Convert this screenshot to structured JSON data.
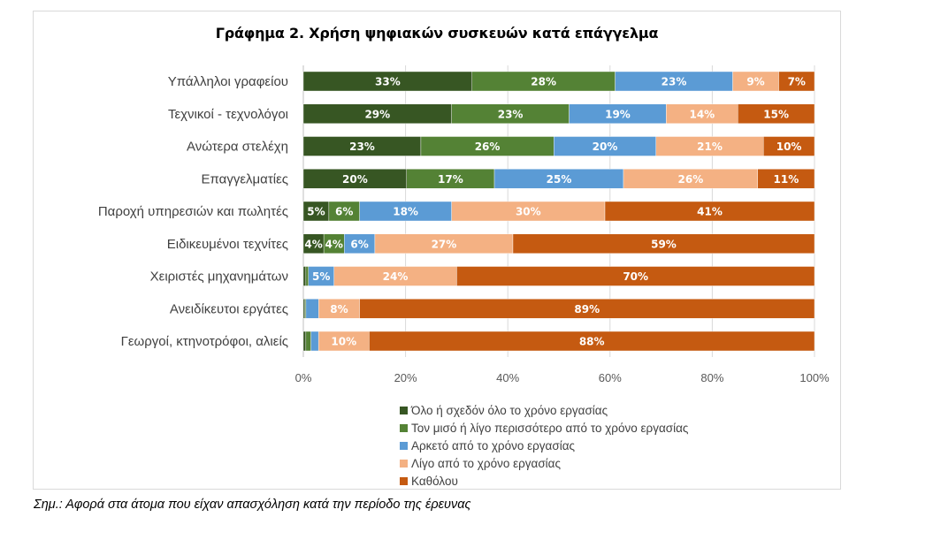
{
  "chart_data": {
    "type": "bar",
    "orientation": "horizontal",
    "stacked": "percent",
    "title": "Γράφημα 2. Χρήση ψηφιακών συσκευών κατά επάγγελμα",
    "xlabel": "",
    "ylabel": "",
    "xlim": [
      0,
      100
    ],
    "x_ticks": [
      "0%",
      "20%",
      "40%",
      "60%",
      "80%",
      "100%"
    ],
    "grid": true,
    "legend_position": "bottom",
    "categories": [
      "Υπάλληλοι γραφείου",
      "Τεχνικοί - τεχνολόγοι",
      "Ανώτερα στελέχη",
      "Επαγγελματίες",
      "Παροχή υπηρεσιών και πωλητές",
      "Ειδικευμένοι τεχνίτες",
      "Χειριστές μηχανημάτων",
      "Ανειδίκευτοι εργάτες",
      "Γεωργοί, κτηνοτρόφοι, αλιείς"
    ],
    "series": [
      {
        "name": "Όλο ή σχεδόν όλο το χρόνο εργασίας",
        "color": "#375623",
        "values": [
          33,
          29,
          23,
          20,
          5,
          4,
          0.5,
          0.3,
          0.5
        ],
        "labels": [
          "33%",
          "29%",
          "23%",
          "20%",
          "5%",
          "4%",
          "",
          "",
          ""
        ]
      },
      {
        "name": "Τον μισό ή λίγο περισσότερο από το χρόνο εργασίας",
        "color": "#548235",
        "values": [
          28,
          23,
          26,
          17,
          6,
          4,
          0.5,
          0.2,
          1
        ],
        "labels": [
          "28%",
          "23%",
          "26%",
          "17%",
          "6%",
          "4%",
          "",
          "",
          ""
        ]
      },
      {
        "name": "Αρκετό από το χρόνο εργασίας",
        "color": "#5b9bd5",
        "values": [
          23,
          19,
          20,
          25,
          18,
          6,
          5,
          2.5,
          1.5
        ],
        "labels": [
          "23%",
          "19%",
          "20%",
          "25%",
          "18%",
          "6%",
          "5%",
          "",
          ""
        ]
      },
      {
        "name": "Λίγο από το χρόνο εργασίας",
        "color": "#f4b183",
        "values": [
          9,
          14,
          21,
          26,
          30,
          27,
          24,
          8,
          10
        ],
        "labels": [
          "9%",
          "14%",
          "21%",
          "26%",
          "30%",
          "27%",
          "24%",
          "8%",
          "10%"
        ]
      },
      {
        "name": "Καθόλου",
        "color": "#c55a11",
        "values": [
          7,
          15,
          10,
          11,
          41,
          59,
          70,
          89,
          88
        ],
        "labels": [
          "7%",
          "15%",
          "10%",
          "11%",
          "41%",
          "59%",
          "70%",
          "89%",
          "88%"
        ]
      }
    ]
  },
  "note": "Σημ.: Αφορά στα άτομα που είχαν απασχόληση κατά την περίοδο της έρευνας",
  "colors": {
    "grid": "#d9d9d9",
    "axis": "#bfbfbf",
    "frame": "#d9d9d9"
  }
}
